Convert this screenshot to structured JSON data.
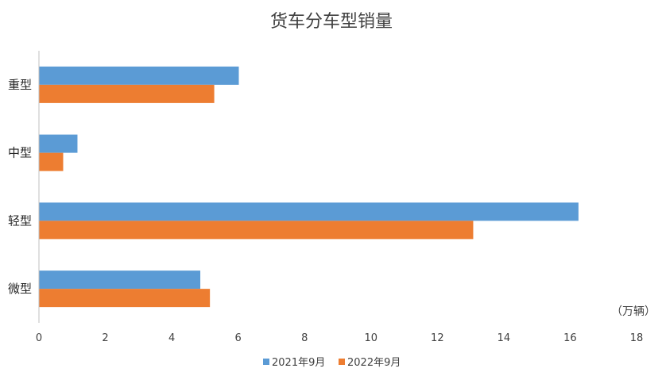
{
  "chart_data": {
    "type": "bar",
    "orientation": "horizontal",
    "title": "货车分车型销量",
    "unit_label": "（万辆）",
    "categories": [
      "重型",
      "中型",
      "轻型",
      "微型"
    ],
    "series": [
      {
        "name": "2021年9月",
        "color": "#5B9BD5",
        "values": [
          6.02,
          1.16,
          16.25,
          4.86
        ]
      },
      {
        "name": "2022年9月",
        "color": "#ED7D31",
        "values": [
          5.28,
          0.73,
          13.08,
          5.15
        ]
      }
    ],
    "x_ticks": [
      "0",
      "2",
      "4",
      "6",
      "8",
      "10",
      "12",
      "14",
      "16",
      "18"
    ],
    "xlim": [
      0,
      18
    ],
    "grid": false,
    "legend_position": "bottom"
  }
}
